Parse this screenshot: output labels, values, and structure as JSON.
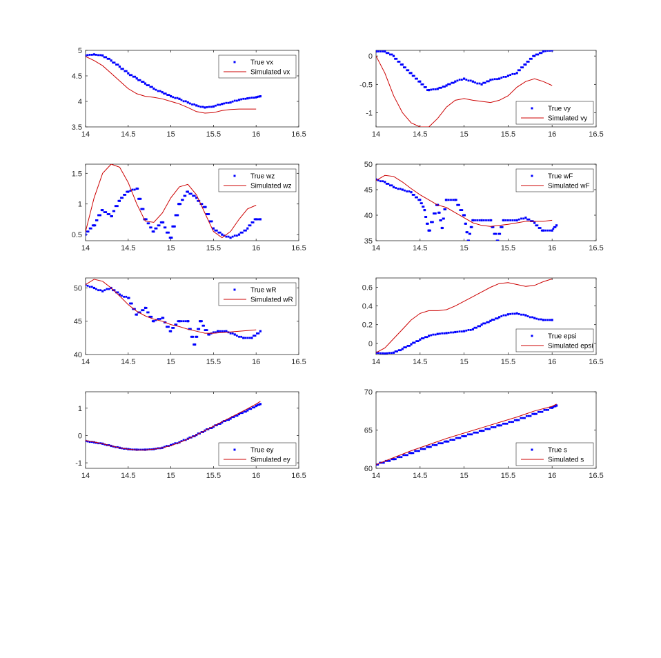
{
  "chart_data": [
    {
      "type": "scatter+line",
      "xlim": [
        14,
        16.5
      ],
      "ylim": [
        3.5,
        5
      ],
      "xticks": [
        "14",
        "14.5",
        "15",
        "15.5",
        "16",
        "16.5"
      ],
      "yticks": [
        "3.5",
        "4",
        "4.5",
        "5"
      ],
      "legend_position": "top-right",
      "series": [
        {
          "name": "True vx",
          "style": "dots",
          "color": "#0000ff",
          "x": [
            14.0,
            14.1,
            14.2,
            14.3,
            14.4,
            14.5,
            14.6,
            14.7,
            14.8,
            14.9,
            15.0,
            15.1,
            15.2,
            15.3,
            15.4,
            15.5,
            15.6,
            15.7,
            15.8,
            15.9,
            16.0,
            16.05
          ],
          "y": [
            4.9,
            4.92,
            4.9,
            4.8,
            4.68,
            4.55,
            4.45,
            4.35,
            4.25,
            4.18,
            4.1,
            4.05,
            3.98,
            3.92,
            3.88,
            3.9,
            3.95,
            3.98,
            4.03,
            4.06,
            4.08,
            4.1
          ]
        },
        {
          "name": "Simulated vx",
          "style": "line",
          "color": "#cc0000",
          "x": [
            14.0,
            14.1,
            14.2,
            14.3,
            14.4,
            14.5,
            14.6,
            14.7,
            14.8,
            14.9,
            15.0,
            15.1,
            15.2,
            15.3,
            15.4,
            15.5,
            15.6,
            15.7,
            15.8,
            15.9,
            16.0
          ],
          "y": [
            4.88,
            4.8,
            4.7,
            4.55,
            4.4,
            4.25,
            4.15,
            4.1,
            4.08,
            4.05,
            4.0,
            3.95,
            3.88,
            3.8,
            3.77,
            3.78,
            3.82,
            3.84,
            3.85,
            3.85,
            3.85
          ]
        }
      ]
    },
    {
      "type": "scatter+line",
      "xlim": [
        14,
        16.5
      ],
      "ylim": [
        -1.25,
        0.1
      ],
      "xticks": [
        "14",
        "14.5",
        "15",
        "15.5",
        "16",
        "16.5"
      ],
      "yticks": [
        "-1",
        "-0.5",
        "0"
      ],
      "legend_position": "bottom-right",
      "series": [
        {
          "name": "True vy",
          "style": "dots",
          "color": "#0000ff",
          "x": [
            14.0,
            14.1,
            14.2,
            14.3,
            14.4,
            14.5,
            14.6,
            14.7,
            14.8,
            14.9,
            15.0,
            15.1,
            15.2,
            15.3,
            15.4,
            15.5,
            15.6,
            15.7,
            15.8,
            15.9,
            16.0
          ],
          "y": [
            0.08,
            0.08,
            0.0,
            -0.15,
            -0.3,
            -0.45,
            -0.6,
            -0.58,
            -0.52,
            -0.45,
            -0.4,
            -0.45,
            -0.5,
            -0.42,
            -0.4,
            -0.35,
            -0.3,
            -0.15,
            0.0,
            0.08,
            0.1
          ]
        },
        {
          "name": "Simulated vy",
          "style": "line",
          "color": "#cc0000",
          "x": [
            14.0,
            14.1,
            14.2,
            14.3,
            14.4,
            14.5,
            14.6,
            14.7,
            14.8,
            14.9,
            15.0,
            15.1,
            15.2,
            15.3,
            15.4,
            15.5,
            15.6,
            15.7,
            15.8,
            15.9,
            16.0
          ],
          "y": [
            0.0,
            -0.3,
            -0.7,
            -1.0,
            -1.18,
            -1.25,
            -1.25,
            -1.1,
            -0.9,
            -0.78,
            -0.75,
            -0.78,
            -0.8,
            -0.82,
            -0.78,
            -0.7,
            -0.55,
            -0.45,
            -0.4,
            -0.45,
            -0.52
          ]
        }
      ]
    },
    {
      "type": "scatter+line",
      "xlim": [
        14,
        16.5
      ],
      "ylim": [
        0.4,
        1.65
      ],
      "xticks": [
        "14",
        "14.5",
        "15",
        "15.5",
        "16",
        "16.5"
      ],
      "yticks": [
        "0.5",
        "1",
        "1.5"
      ],
      "legend_position": "top-right",
      "series": [
        {
          "name": "True wz",
          "style": "dots",
          "color": "#0000ff",
          "x": [
            14.0,
            14.1,
            14.2,
            14.3,
            14.4,
            14.5,
            14.6,
            14.7,
            14.8,
            14.9,
            15.0,
            15.1,
            15.2,
            15.3,
            15.4,
            15.5,
            15.6,
            15.7,
            15.8,
            15.9,
            16.0,
            16.05
          ],
          "y": [
            0.5,
            0.65,
            0.9,
            0.8,
            1.05,
            1.2,
            1.25,
            0.75,
            0.55,
            0.7,
            0.45,
            1.0,
            1.2,
            1.1,
            0.95,
            0.6,
            0.5,
            0.45,
            0.5,
            0.6,
            0.75,
            0.75
          ]
        },
        {
          "name": "Simulated wz",
          "style": "line",
          "color": "#cc0000",
          "x": [
            14.0,
            14.1,
            14.2,
            14.3,
            14.4,
            14.5,
            14.6,
            14.7,
            14.8,
            14.9,
            15.0,
            15.1,
            15.2,
            15.3,
            15.4,
            15.5,
            15.6,
            15.7,
            15.8,
            15.9,
            16.0
          ],
          "y": [
            0.55,
            1.1,
            1.5,
            1.65,
            1.6,
            1.35,
            1.0,
            0.72,
            0.7,
            0.85,
            1.1,
            1.28,
            1.32,
            1.15,
            0.85,
            0.55,
            0.45,
            0.55,
            0.75,
            0.92,
            0.98
          ]
        }
      ]
    },
    {
      "type": "scatter+line",
      "xlim": [
        14,
        16.5
      ],
      "ylim": [
        35,
        50
      ],
      "xticks": [
        "14",
        "14.5",
        "15",
        "15.5",
        "16",
        "16.5"
      ],
      "yticks": [
        "35",
        "40",
        "45",
        "50"
      ],
      "legend_position": "top-right",
      "series": [
        {
          "name": "True wF",
          "style": "dots",
          "color": "#0000ff",
          "x": [
            14.0,
            14.1,
            14.2,
            14.3,
            14.4,
            14.5,
            14.55,
            14.6,
            14.7,
            14.75,
            14.8,
            14.9,
            15.0,
            15.05,
            15.1,
            15.2,
            15.3,
            15.38,
            15.45,
            15.6,
            15.7,
            15.8,
            15.9,
            16.0,
            16.05
          ],
          "y": [
            47,
            46.5,
            45.5,
            45,
            44.5,
            43,
            41,
            37,
            42,
            37.5,
            43,
            43,
            40,
            35,
            39,
            39,
            39,
            35,
            39,
            39,
            39.5,
            38.5,
            37,
            37,
            38
          ]
        },
        {
          "name": "Simulated wF",
          "style": "line",
          "color": "#cc0000",
          "x": [
            14.0,
            14.1,
            14.2,
            14.3,
            14.4,
            14.5,
            14.6,
            14.7,
            14.8,
            14.9,
            15.0,
            15.1,
            15.2,
            15.3,
            15.4,
            15.5,
            15.6,
            15.7,
            15.8,
            15.9,
            16.0
          ],
          "y": [
            46.8,
            47.8,
            47.6,
            46.5,
            45.2,
            44,
            43,
            42,
            41.5,
            40.5,
            39.5,
            38.5,
            38,
            37.8,
            38,
            38.2,
            38.5,
            38.8,
            38.8,
            38.8,
            39
          ]
        }
      ]
    },
    {
      "type": "scatter+line",
      "xlim": [
        14,
        16.5
      ],
      "ylim": [
        40,
        51.5
      ],
      "xticks": [
        "14",
        "14.5",
        "15",
        "15.5",
        "16",
        "16.5"
      ],
      "yticks": [
        "40",
        "45",
        "50"
      ],
      "legend_position": "top-right",
      "series": [
        {
          "name": "True wR",
          "style": "dots",
          "color": "#0000ff",
          "x": [
            14.0,
            14.1,
            14.2,
            14.3,
            14.4,
            14.5,
            14.6,
            14.7,
            14.8,
            14.9,
            15.0,
            15.1,
            15.2,
            15.28,
            15.35,
            15.45,
            15.55,
            15.65,
            15.75,
            15.85,
            15.95,
            16.05
          ],
          "y": [
            50.5,
            50,
            49.5,
            50,
            49,
            48.5,
            46,
            47,
            45,
            45.5,
            43.5,
            45,
            45,
            41.5,
            45,
            43,
            43.5,
            43.5,
            43,
            42.5,
            42.5,
            43.5
          ]
        },
        {
          "name": "Simulated wR",
          "style": "line",
          "color": "#cc0000",
          "x": [
            14.0,
            14.1,
            14.2,
            14.3,
            14.4,
            14.5,
            14.6,
            14.7,
            14.8,
            14.9,
            15.0,
            15.1,
            15.2,
            15.3,
            15.4,
            15.5,
            15.6,
            15.7,
            15.8,
            15.9,
            16.0
          ],
          "y": [
            50.5,
            51.3,
            51,
            50,
            48.8,
            47.5,
            46.5,
            45.8,
            45.3,
            45,
            44.5,
            44.2,
            43.8,
            43.5,
            43.2,
            43.2,
            43.3,
            43.4,
            43.5,
            43.6,
            43.7
          ]
        }
      ]
    },
    {
      "type": "scatter+line",
      "xlim": [
        14,
        16.5
      ],
      "ylim": [
        -0.12,
        0.7
      ],
      "xticks": [
        "14",
        "14.5",
        "15",
        "15.5",
        "16",
        "16.5"
      ],
      "yticks": [
        "0",
        "0.2",
        "0.4",
        "0.6"
      ],
      "legend_position": "bottom-right",
      "series": [
        {
          "name": "True epsi",
          "style": "dots",
          "color": "#0000ff",
          "x": [
            14.0,
            14.1,
            14.2,
            14.3,
            14.4,
            14.5,
            14.6,
            14.7,
            14.8,
            14.9,
            15.0,
            15.1,
            15.2,
            15.3,
            15.4,
            15.5,
            15.6,
            15.7,
            15.8,
            15.9,
            16.0
          ],
          "y": [
            -0.1,
            -0.11,
            -0.1,
            -0.06,
            -0.01,
            0.04,
            0.08,
            0.1,
            0.11,
            0.12,
            0.13,
            0.15,
            0.2,
            0.24,
            0.28,
            0.31,
            0.32,
            0.3,
            0.27,
            0.25,
            0.25
          ]
        },
        {
          "name": "Simulated epsi",
          "style": "line",
          "color": "#cc0000",
          "x": [
            14.0,
            14.1,
            14.2,
            14.3,
            14.4,
            14.5,
            14.6,
            14.7,
            14.8,
            14.9,
            15.0,
            15.1,
            15.2,
            15.3,
            15.4,
            15.5,
            15.6,
            15.7,
            15.8,
            15.9,
            16.0
          ],
          "y": [
            -0.1,
            -0.05,
            0.05,
            0.15,
            0.25,
            0.32,
            0.35,
            0.35,
            0.36,
            0.4,
            0.45,
            0.5,
            0.55,
            0.6,
            0.64,
            0.65,
            0.63,
            0.61,
            0.62,
            0.66,
            0.69
          ]
        }
      ]
    },
    {
      "type": "scatter+line",
      "xlim": [
        14,
        16.5
      ],
      "ylim": [
        -1.2,
        1.6
      ],
      "xticks": [
        "14",
        "14.5",
        "15",
        "15.5",
        "16",
        "16.5"
      ],
      "yticks": [
        "-1",
        "0",
        "1"
      ],
      "legend_position": "bottom-right",
      "series": [
        {
          "name": "True ey",
          "style": "dots",
          "color": "#0000ff",
          "x": [
            14.0,
            14.1,
            14.2,
            14.3,
            14.4,
            14.5,
            14.6,
            14.7,
            14.8,
            14.9,
            15.0,
            15.1,
            15.2,
            15.3,
            15.4,
            15.5,
            15.6,
            15.7,
            15.8,
            15.9,
            16.0,
            16.05
          ],
          "y": [
            -0.2,
            -0.25,
            -0.3,
            -0.38,
            -0.45,
            -0.5,
            -0.52,
            -0.52,
            -0.5,
            -0.45,
            -0.35,
            -0.25,
            -0.12,
            0.02,
            0.18,
            0.32,
            0.48,
            0.62,
            0.78,
            0.92,
            1.08,
            1.15
          ]
        },
        {
          "name": "Simulated ey",
          "style": "line",
          "color": "#cc0000",
          "x": [
            14.0,
            14.1,
            14.2,
            14.3,
            14.4,
            14.5,
            14.6,
            14.7,
            14.8,
            14.9,
            15.0,
            15.1,
            15.2,
            15.3,
            15.4,
            15.5,
            15.6,
            15.7,
            15.8,
            15.9,
            16.0,
            16.05
          ],
          "y": [
            -0.18,
            -0.24,
            -0.3,
            -0.38,
            -0.45,
            -0.5,
            -0.53,
            -0.53,
            -0.5,
            -0.45,
            -0.37,
            -0.26,
            -0.13,
            0.02,
            0.18,
            0.34,
            0.5,
            0.66,
            0.82,
            0.98,
            1.15,
            1.25
          ]
        }
      ]
    },
    {
      "type": "scatter+line",
      "xlim": [
        14,
        16.5
      ],
      "ylim": [
        60,
        70
      ],
      "xticks": [
        "14",
        "14.5",
        "15",
        "15.5",
        "16",
        "16.5"
      ],
      "yticks": [
        "60",
        "65",
        "70"
      ],
      "legend_position": "bottom-right",
      "series": [
        {
          "name": "True s",
          "style": "dots",
          "color": "#0000ff",
          "x": [
            14.0,
            14.2,
            14.4,
            14.6,
            14.8,
            15.0,
            15.2,
            15.4,
            15.6,
            15.8,
            16.0,
            16.05
          ],
          "y": [
            60.5,
            61.2,
            62.0,
            62.8,
            63.5,
            64.2,
            64.9,
            65.6,
            66.3,
            67.1,
            67.9,
            68.2
          ]
        },
        {
          "name": "Simulated s",
          "style": "line",
          "color": "#cc0000",
          "x": [
            14.0,
            14.2,
            14.4,
            14.6,
            14.8,
            15.0,
            15.2,
            15.4,
            15.6,
            15.8,
            16.0,
            16.05
          ],
          "y": [
            60.5,
            61.4,
            62.3,
            63.1,
            63.9,
            64.6,
            65.3,
            66.0,
            66.7,
            67.5,
            68.1,
            68.4
          ]
        }
      ]
    }
  ]
}
